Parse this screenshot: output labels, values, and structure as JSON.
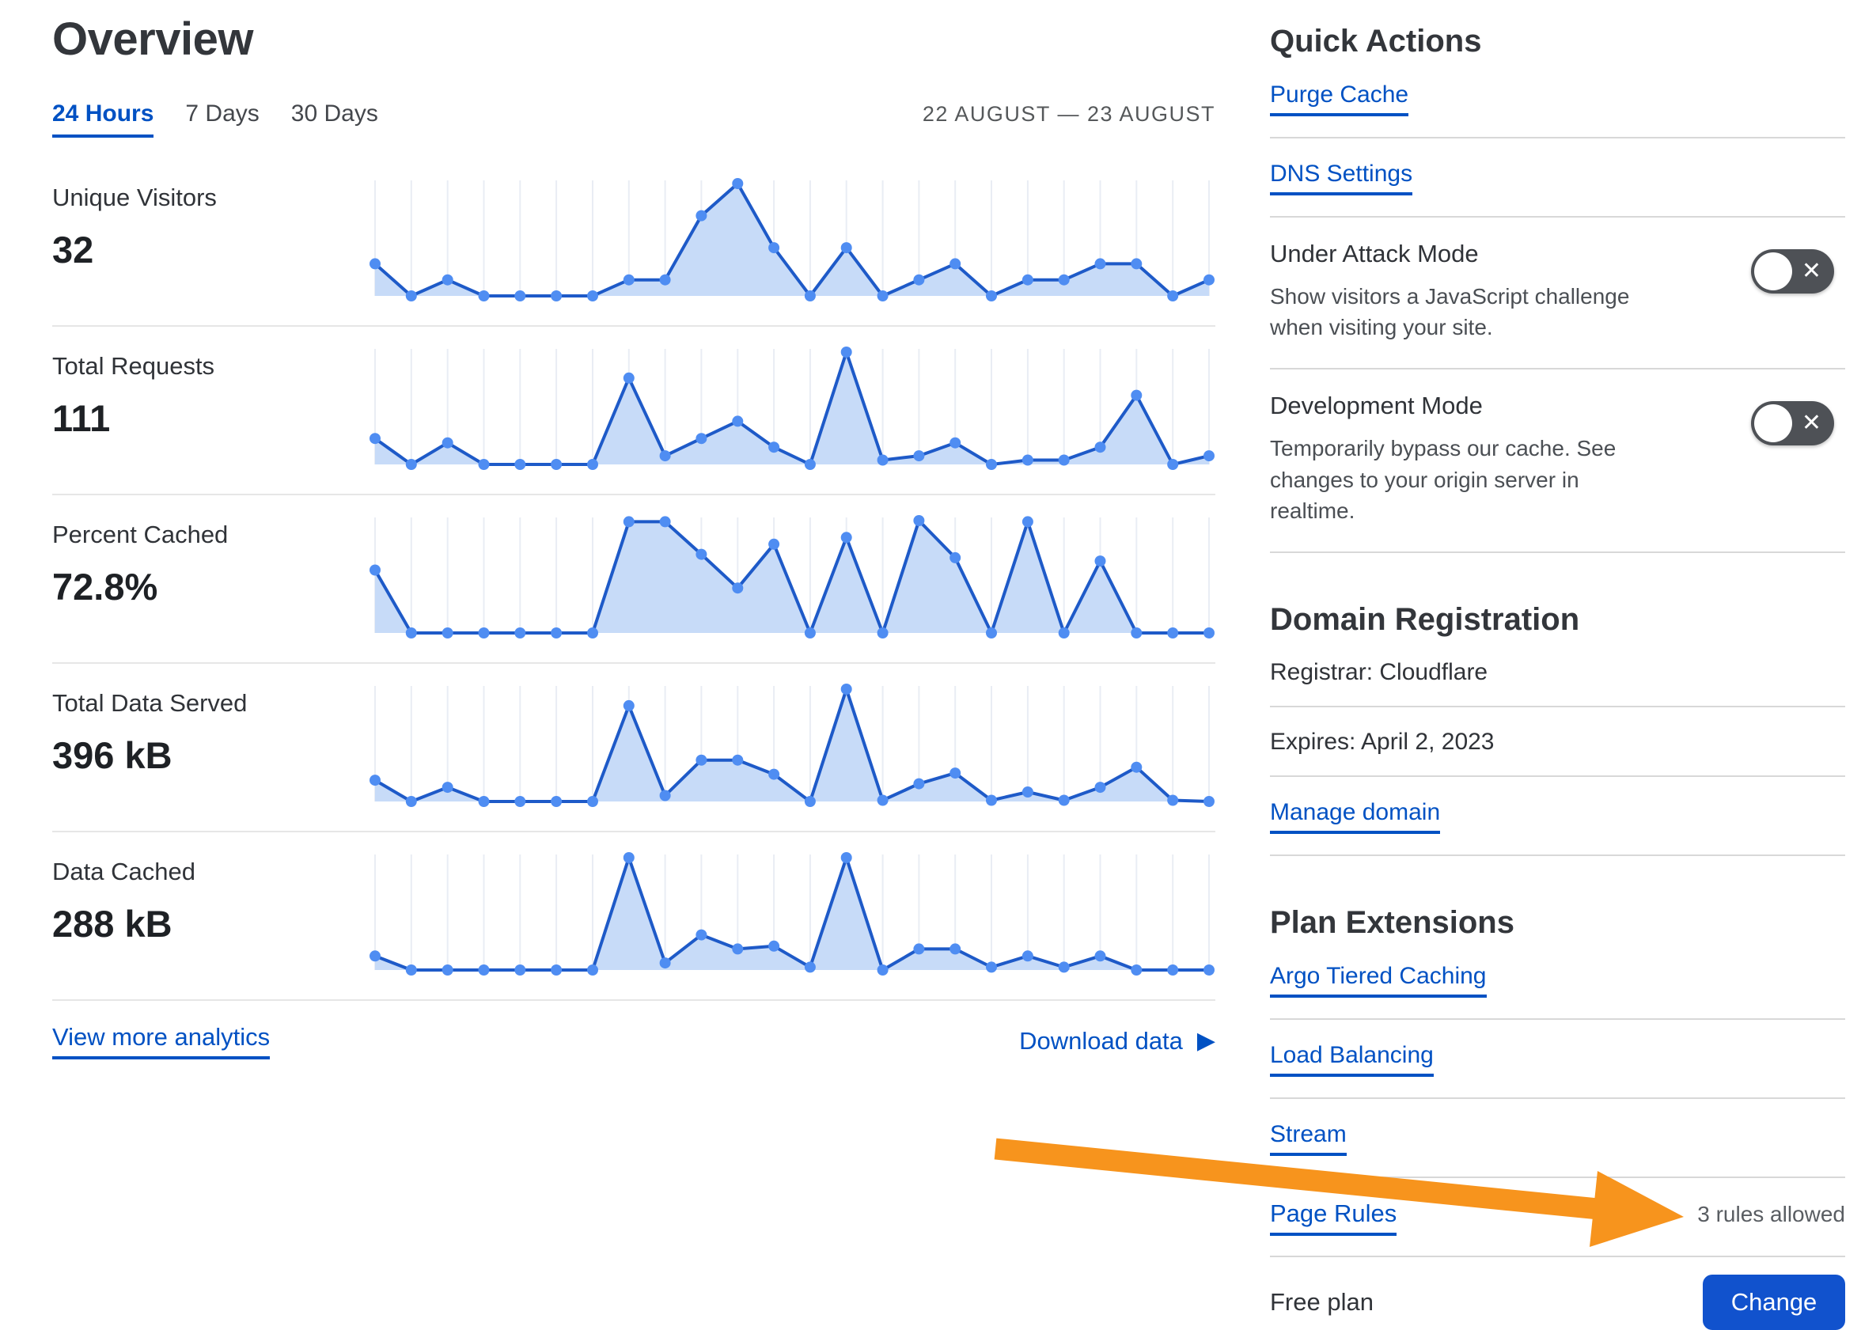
{
  "title": "Overview",
  "tabs": {
    "hours24": "24 Hours",
    "days7": "7 Days",
    "days30": "30 Days"
  },
  "date_range": "22 AUGUST — 23 AUGUST",
  "chart_data": [
    {
      "type": "area",
      "metric": "Unique Visitors",
      "value_display": "32",
      "total": 32,
      "points": 24,
      "x_range": "24 hours (22 August — 23 August)",
      "grid": "vertical-only",
      "values": [
        2,
        0,
        1,
        0,
        0,
        0,
        0,
        1,
        1,
        5,
        7,
        3,
        0,
        3,
        0,
        1,
        2,
        0,
        1,
        1,
        2,
        2,
        0,
        1
      ]
    },
    {
      "type": "area",
      "metric": "Total Requests",
      "value_display": "111",
      "total": 111,
      "points": 24,
      "x_range": "24 hours (22 August — 23 August)",
      "grid": "vertical-only",
      "values": [
        6,
        0,
        5,
        0,
        0,
        0,
        0,
        20,
        2,
        6,
        10,
        4,
        0,
        26,
        1,
        2,
        5,
        0,
        1,
        1,
        4,
        16,
        0,
        2
      ]
    },
    {
      "type": "area",
      "metric": "Percent Cached",
      "value_display": "72.8%",
      "points": 24,
      "x_range": "24 hours (22 August — 23 August)",
      "ylim": [
        0,
        100
      ],
      "grid": "vertical-only",
      "values": [
        56,
        0,
        0,
        0,
        0,
        0,
        0,
        99,
        99,
        70,
        40,
        79,
        0,
        85,
        0,
        100,
        67,
        0,
        99,
        0,
        64,
        0,
        0,
        0
      ]
    },
    {
      "type": "area",
      "metric": "Total Data Served",
      "value_display": "396 kB",
      "total_kb": 396,
      "points": 24,
      "x_range": "24 hours (22 August — 23 August)",
      "grid": "vertical-only",
      "values": [
        18,
        0,
        12,
        0,
        0,
        0,
        0,
        81,
        5,
        35,
        35,
        23,
        0,
        95,
        1,
        15,
        24,
        1,
        8,
        1,
        12,
        29,
        1,
        0
      ]
    },
    {
      "type": "area",
      "metric": "Data Cached",
      "value_display": "288 kB",
      "total_kb": 288,
      "points": 24,
      "x_range": "24 hours (22 August — 23 August)",
      "grid": "vertical-only",
      "values": [
        10,
        0,
        0,
        0,
        0,
        0,
        0,
        80,
        5,
        25,
        15,
        17,
        2,
        80,
        0,
        15,
        15,
        2,
        10,
        2,
        10,
        0,
        0,
        0
      ]
    }
  ],
  "footer_links": {
    "view_more": "View more analytics",
    "download": "Download data"
  },
  "quick_actions": {
    "heading": "Quick Actions",
    "purge_cache": "Purge Cache",
    "dns_settings": "DNS Settings",
    "under_attack": {
      "title": "Under Attack Mode",
      "description": "Show visitors a JavaScript challenge when visiting your site.",
      "state": "off"
    },
    "development_mode": {
      "title": "Development Mode",
      "description": "Temporarily bypass our cache. See changes to your origin server in realtime.",
      "state": "off"
    }
  },
  "domain_registration": {
    "heading": "Domain Registration",
    "registrar": "Registrar: Cloudflare",
    "expires": "Expires: April 2, 2023",
    "manage": "Manage domain"
  },
  "plan_extensions": {
    "heading": "Plan Extensions",
    "items": [
      "Argo Tiered Caching",
      "Load Balancing",
      "Stream",
      "Page Rules"
    ],
    "page_rules_note": "3 rules allowed"
  },
  "plan": {
    "label": "Free plan",
    "change_button": "Change"
  },
  "icons": {
    "toggle_off_x": "✕",
    "download_play": "▶"
  },
  "colors": {
    "link_blue": "#0051c3",
    "button_blue": "#1152cd",
    "chart_line": "#1e5ac8",
    "chart_dot": "#4f8df2",
    "chart_fill": "#c7dbf8",
    "chart_grid": "#e9edf4",
    "toggle_bg": "#4e5156",
    "arrow_orange": "#f7941d"
  }
}
